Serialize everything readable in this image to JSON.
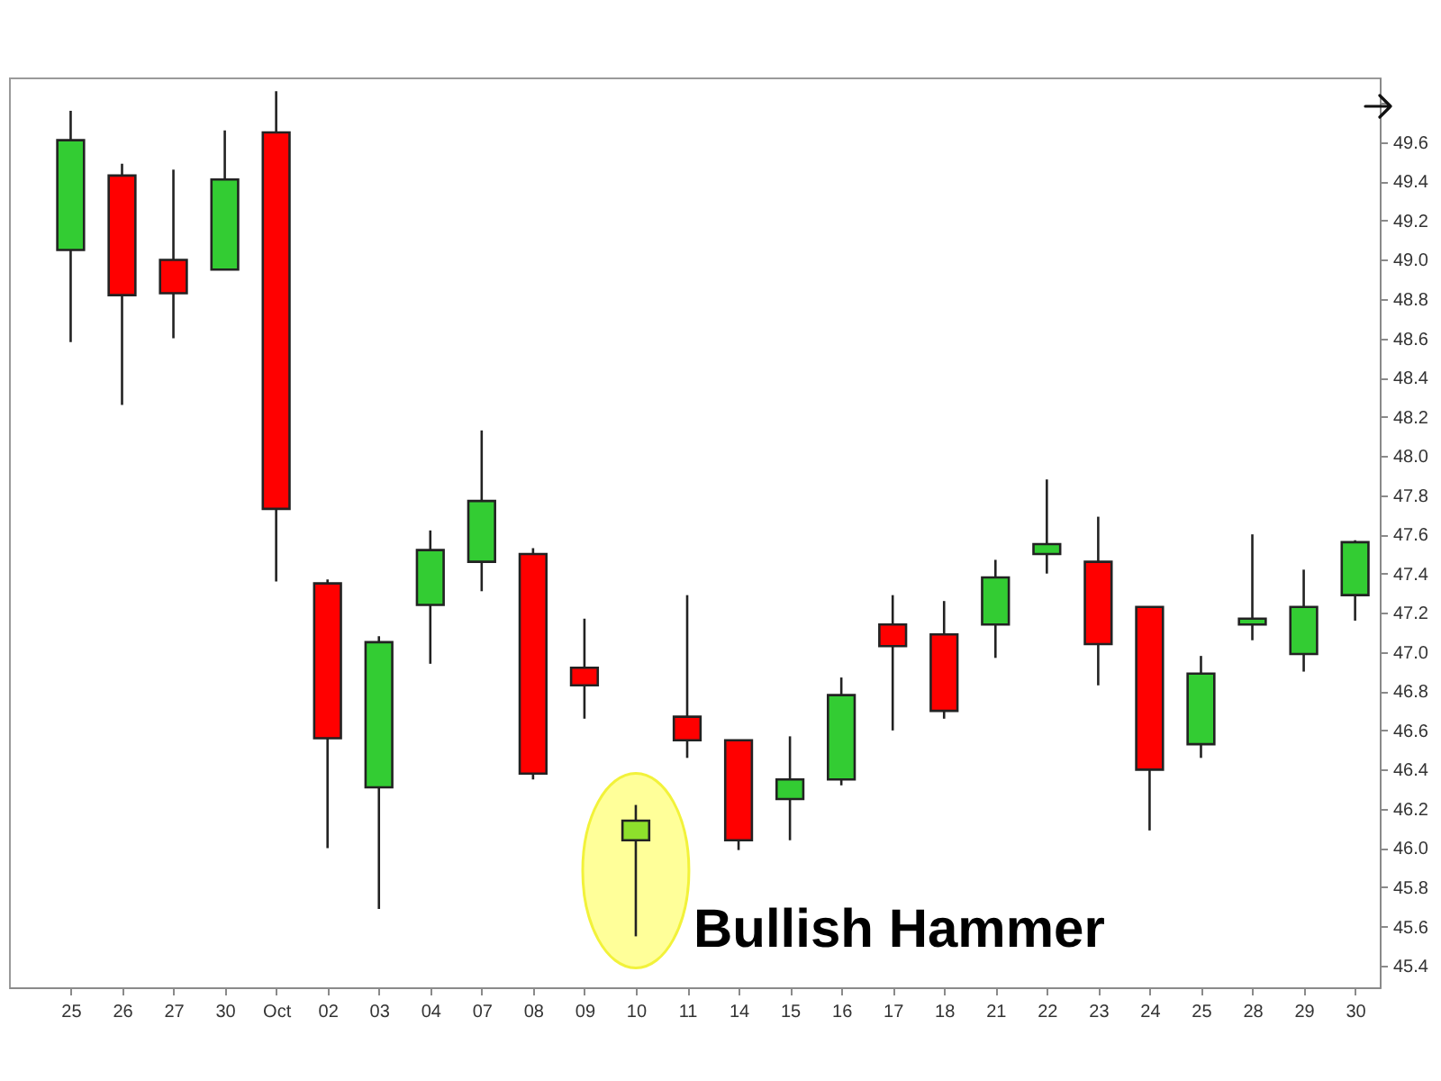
{
  "chart_data": {
    "type": "candlestick",
    "categories": [
      "25",
      "26",
      "27",
      "30",
      "Oct",
      "02",
      "03",
      "04",
      "07",
      "08",
      "09",
      "10",
      "11",
      "14",
      "15",
      "16",
      "17",
      "18",
      "21",
      "22",
      "23",
      "24",
      "25",
      "28",
      "29",
      "30"
    ],
    "ohlc": [
      [
        49.05,
        49.76,
        48.58,
        49.61
      ],
      [
        49.43,
        49.49,
        48.26,
        48.82
      ],
      [
        49.0,
        49.46,
        48.6,
        48.83
      ],
      [
        48.95,
        49.66,
        48.95,
        49.41
      ],
      [
        49.65,
        49.86,
        47.36,
        47.73
      ],
      [
        47.35,
        47.37,
        46.0,
        46.56
      ],
      [
        46.31,
        47.08,
        45.69,
        47.05
      ],
      [
        47.24,
        47.62,
        46.94,
        47.52
      ],
      [
        47.46,
        48.13,
        47.31,
        47.77
      ],
      [
        47.5,
        47.53,
        46.35,
        46.38
      ],
      [
        46.92,
        47.17,
        46.66,
        46.83
      ],
      [
        46.04,
        46.22,
        45.55,
        46.14
      ],
      [
        46.67,
        47.29,
        46.46,
        46.55
      ],
      [
        46.55,
        46.55,
        45.99,
        46.04
      ],
      [
        46.25,
        46.57,
        46.04,
        46.35
      ],
      [
        46.35,
        46.87,
        46.32,
        46.78
      ],
      [
        47.14,
        47.29,
        46.6,
        47.03
      ],
      [
        47.09,
        47.26,
        46.66,
        46.7
      ],
      [
        47.14,
        47.47,
        46.97,
        47.38
      ],
      [
        47.5,
        47.88,
        47.4,
        47.55
      ],
      [
        47.46,
        47.69,
        46.83,
        47.04
      ],
      [
        47.23,
        47.23,
        46.09,
        46.4
      ],
      [
        46.53,
        46.98,
        46.46,
        46.89
      ],
      [
        47.14,
        47.6,
        47.06,
        47.17
      ],
      [
        46.99,
        47.42,
        46.9,
        47.23
      ],
      [
        47.29,
        47.57,
        47.16,
        47.56
      ]
    ],
    "colors": [
      "#33cc33",
      "#ff0000",
      "#ff0000",
      "#33cc33",
      "#ff0000",
      "#ff0000",
      "#33cc33",
      "#33cc33",
      "#33cc33",
      "#ff0000",
      "#ff0000",
      "#8ee02c",
      "#ff0000",
      "#ff0000",
      "#33cc33",
      "#33cc33",
      "#ff0000",
      "#ff0000",
      "#33cc33",
      "#33cc33",
      "#ff0000",
      "#ff0000",
      "#33cc33",
      "#33cc33",
      "#33cc33",
      "#33cc33"
    ],
    "ylim": [
      45.29,
      49.93
    ],
    "yticks": [
      45.4,
      45.6,
      45.8,
      {
        "value": 46,
        "label": "46.0"
      },
      46.2,
      46.4,
      46.6,
      46.8,
      {
        "value": 47,
        "label": "47.0"
      },
      47.2,
      47.4,
      47.6,
      47.8,
      {
        "value": 48,
        "label": "48.0"
      },
      48.2,
      48.4,
      48.6,
      48.8,
      {
        "value": 49,
        "label": "49.0"
      },
      49.2,
      49.4,
      49.6,
      {
        "value": 49.8,
        "label": null
      }
    ],
    "annotations": [
      {
        "text": "Bullish Hammer",
        "x": "10",
        "y": 45.58
      }
    ]
  }
}
